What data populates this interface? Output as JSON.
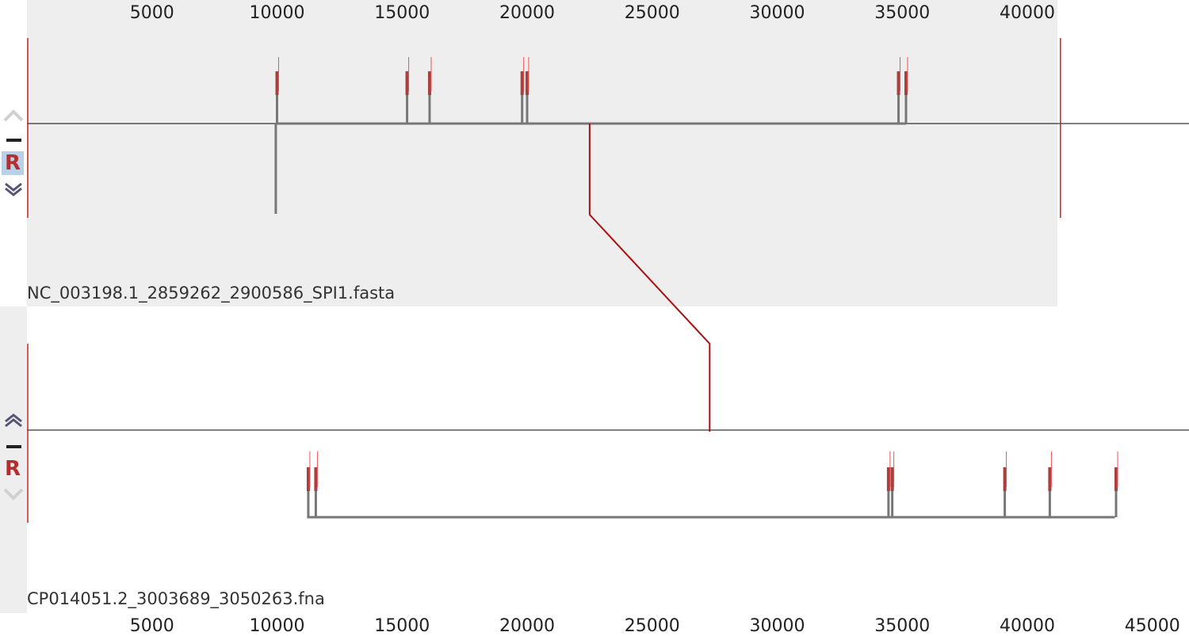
{
  "colors": {
    "panel_bg": "#eeeeee",
    "profile": "#777777",
    "peak": "#a84040",
    "peak_light": "#f05050",
    "lcb_edge": "#cc2020",
    "connector": "#aa1010",
    "accent_r": "#b03030"
  },
  "controls": {
    "top": [
      {
        "name": "move-up-icon",
        "state": "disabled"
      },
      {
        "name": "minus-icon",
        "state": "enabled"
      },
      {
        "name": "reverse-button",
        "label": "R",
        "state": "active"
      },
      {
        "name": "move-down-icon",
        "state": "enabled"
      }
    ],
    "bottom": [
      {
        "name": "move-up-icon",
        "state": "enabled"
      },
      {
        "name": "minus-icon",
        "state": "enabled"
      },
      {
        "name": "reverse-button",
        "label": "R",
        "state": "normal"
      },
      {
        "name": "move-down-icon",
        "state": "disabled"
      }
    ]
  },
  "sequences": [
    {
      "name": "NC_003198.1_2859262_2900586_SPI1.fasta",
      "length": 41325,
      "ruler_max": 41325,
      "ticks": [
        "5000",
        "10000",
        "15000",
        "20000",
        "25000",
        "30000",
        "35000",
        "40000"
      ],
      "ticks_num": [
        5000,
        10000,
        15000,
        20000,
        25000,
        30000,
        35000,
        40000
      ],
      "block_start": 0,
      "block_end": 41325,
      "peaks": [
        10000,
        15200,
        16100,
        19800,
        20000,
        34850,
        35150
      ],
      "baseline_start": 9950,
      "baseline_end": 35150,
      "connector_position": 22500
    },
    {
      "name": "CP014051.2_3003689_3050263.fna",
      "length": 46575,
      "ruler_max": 46575,
      "ticks": [
        "5000",
        "10000",
        "15000",
        "20000",
        "25000",
        "30000",
        "35000",
        "40000",
        "45000"
      ],
      "ticks_num": [
        5000,
        10000,
        15000,
        20000,
        25000,
        30000,
        35000,
        40000,
        45000
      ],
      "block_start": 0,
      "block_end": 46575,
      "peaks": [
        11250,
        11550,
        34450,
        34600,
        39100,
        40900,
        43550
      ],
      "baseline_start": 11200,
      "baseline_end": 43500,
      "connector_position": 27300
    }
  ]
}
